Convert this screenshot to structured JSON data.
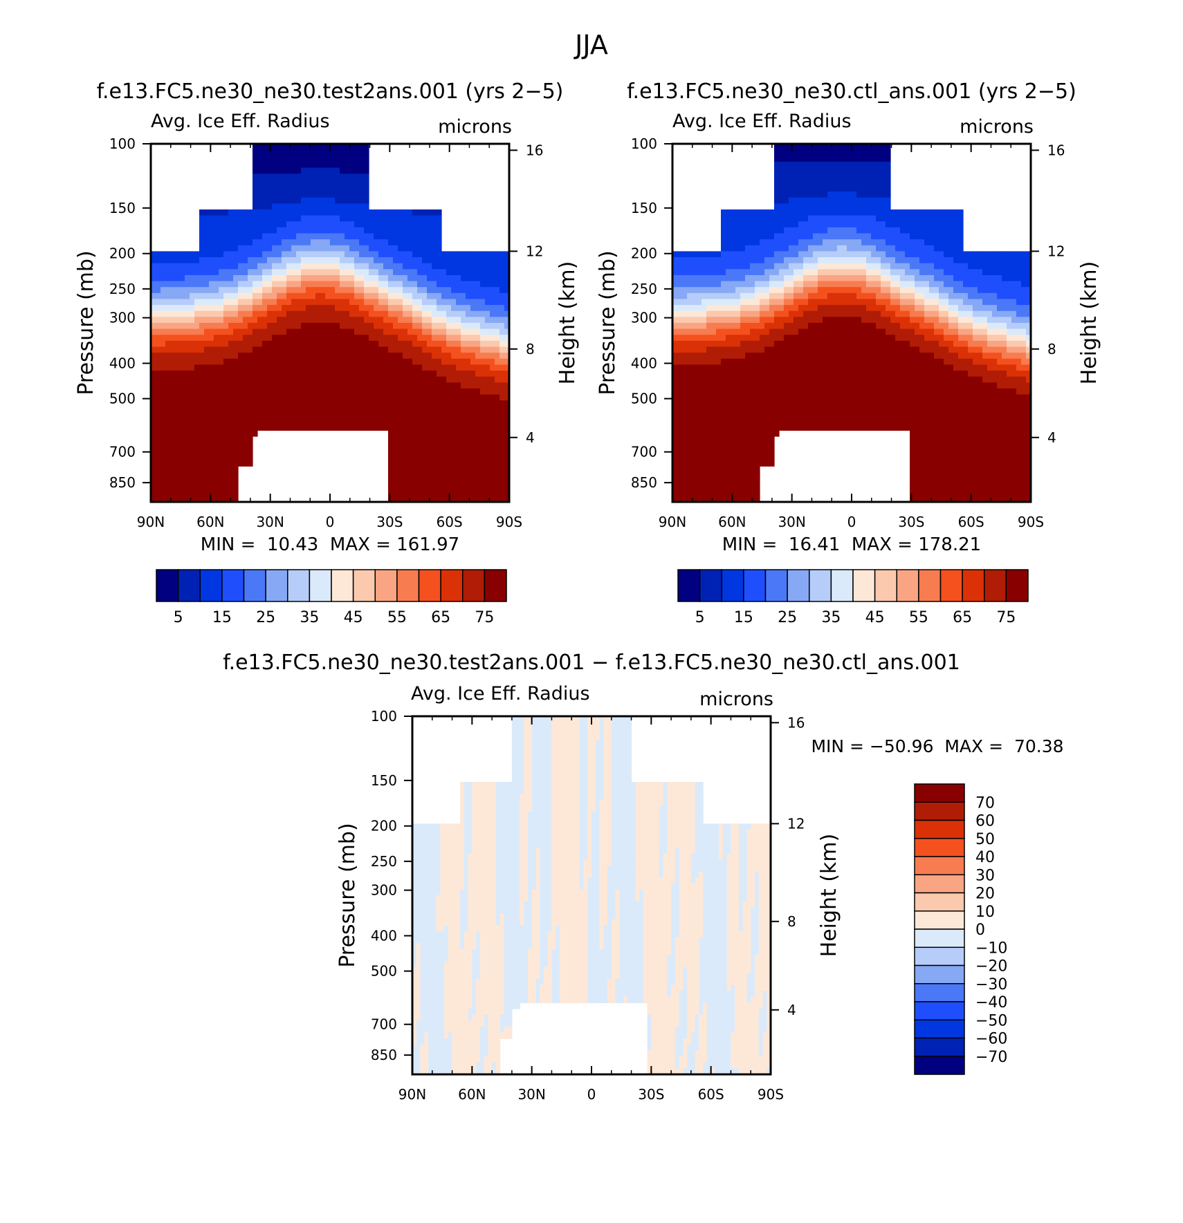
{
  "figure": {
    "title": "JJA",
    "diff_title": "f.e13.FC5.ne30_ne30.test2ans.001 − f.e13.FC5.ne30_ne30.ctl_ans.001"
  },
  "chart_data": [
    {
      "type": "heatmap",
      "title": "f.e13.FC5.ne30_ne30.test2ans.001 (yrs 2−5)",
      "subtitle": "Avg. Ice Eff. Radius",
      "units": "microns",
      "ylabel": "Pressure (mb)",
      "ylabel_right": "Height (km)",
      "x_ticks": [
        "90N",
        "60N",
        "30N",
        "0",
        "30S",
        "60S",
        "90S"
      ],
      "y_ticks": [
        "100",
        "150",
        "200",
        "250",
        "300",
        "400",
        "500",
        "700",
        "850"
      ],
      "y_ticks_right": [
        "16",
        "12",
        "8",
        "4"
      ],
      "min_label": "MIN =  10.43  MAX = 161.97",
      "colorbar_labels": [
        "5",
        "15",
        "25",
        "35",
        "45",
        "55",
        "65",
        "75"
      ],
      "levels": [
        5,
        10,
        15,
        20,
        25,
        30,
        35,
        40,
        45,
        50,
        55,
        60,
        65,
        70,
        75
      ],
      "colors": [
        "#000080",
        "#0022b4",
        "#0037e0",
        "#1f4ffc",
        "#4a78f7",
        "#86a8f5",
        "#b6cdf9",
        "#daeafa",
        "#fde8d8",
        "#fbc9ae",
        "#f9a583",
        "#f77c50",
        "#f4511e",
        "#da3107",
        "#b01c05",
        "#880000"
      ]
    },
    {
      "type": "heatmap",
      "title": "f.e13.FC5.ne30_ne30.ctl_ans.001 (yrs 2−5)",
      "subtitle": "Avg. Ice Eff. Radius",
      "units": "microns",
      "ylabel": "Pressure (mb)",
      "ylabel_right": "Height (km)",
      "x_ticks": [
        "90N",
        "60N",
        "30N",
        "0",
        "30S",
        "60S",
        "90S"
      ],
      "y_ticks": [
        "100",
        "150",
        "200",
        "250",
        "300",
        "400",
        "500",
        "700",
        "850"
      ],
      "y_ticks_right": [
        "16",
        "12",
        "8",
        "4"
      ],
      "min_label": "MIN =  16.41  MAX = 178.21",
      "colorbar_labels": [
        "5",
        "15",
        "25",
        "35",
        "45",
        "55",
        "65",
        "75"
      ],
      "levels": [
        5,
        10,
        15,
        20,
        25,
        30,
        35,
        40,
        45,
        50,
        55,
        60,
        65,
        70,
        75
      ],
      "colors": [
        "#000080",
        "#0022b4",
        "#0037e0",
        "#1f4ffc",
        "#4a78f7",
        "#86a8f5",
        "#b6cdf9",
        "#daeafa",
        "#fde8d8",
        "#fbc9ae",
        "#f9a583",
        "#f77c50",
        "#f4511e",
        "#da3107",
        "#b01c05",
        "#880000"
      ]
    },
    {
      "type": "heatmap",
      "subtitle": "Avg. Ice Eff. Radius",
      "units": "microns",
      "ylabel": "Pressure (mb)",
      "ylabel_right": "Height (km)",
      "x_ticks": [
        "90N",
        "60N",
        "30N",
        "0",
        "30S",
        "60S",
        "90S"
      ],
      "y_ticks": [
        "100",
        "150",
        "200",
        "250",
        "300",
        "400",
        "500",
        "700",
        "850"
      ],
      "y_ticks_right": [
        "16",
        "12",
        "8",
        "4"
      ],
      "min_label": "MIN = −50.96  MAX =  70.38",
      "colorbar_labels": [
        "70",
        "60",
        "50",
        "40",
        "30",
        "20",
        "10",
        "0",
        "−10",
        "−20",
        "−30",
        "−40",
        "−50",
        "−60",
        "−70"
      ],
      "levels": [
        -70,
        -60,
        -50,
        -40,
        -30,
        -20,
        -10,
        0,
        10,
        20,
        30,
        40,
        50,
        60,
        70
      ],
      "colors": [
        "#880000",
        "#b01c05",
        "#da3107",
        "#f4511e",
        "#f77c50",
        "#f9a583",
        "#fbc9ae",
        "#fde8d8",
        "#daeafa",
        "#b6cdf9",
        "#86a8f5",
        "#4a78f7",
        "#1f4ffc",
        "#0037e0",
        "#0022b4",
        "#000080"
      ]
    }
  ]
}
